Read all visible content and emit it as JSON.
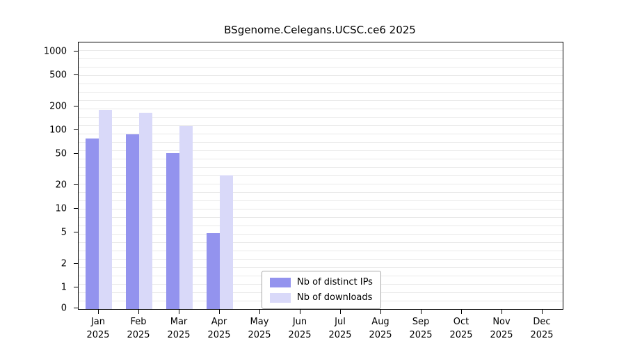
{
  "title": "BSgenome.Celegans.UCSC.ce6 2025",
  "colors": {
    "distinct_ips": "#9393ee",
    "downloads": "#d9d9f9",
    "axis": "#000000",
    "grid": "#e9e9e9",
    "background": "#ffffff"
  },
  "legend": {
    "items": [
      {
        "label": "Nb of distinct IPs",
        "key": "distinct_ips"
      },
      {
        "label": "Nb of downloads",
        "key": "downloads"
      }
    ]
  },
  "chart_data": {
    "type": "bar",
    "title": "BSgenome.Celegans.UCSC.ce6 2025",
    "categories": [
      "Jan",
      "Feb",
      "Mar",
      "Apr",
      "May",
      "Jun",
      "Jul",
      "Aug",
      "Sep",
      "Oct",
      "Nov",
      "Dec"
    ],
    "year": "2025",
    "series": [
      {
        "name": "Nb of distinct IPs",
        "values": [
          80,
          90,
          52,
          5,
          0,
          0,
          0,
          0,
          0,
          0,
          0,
          0
        ]
      },
      {
        "name": "Nb of downloads",
        "values": [
          185,
          170,
          115,
          27,
          0,
          0,
          0,
          0,
          0,
          0,
          0,
          0
        ]
      }
    ],
    "yscale": "log",
    "yticks": [
      0,
      1,
      2,
      5,
      10,
      20,
      50,
      100,
      200,
      500,
      1000
    ],
    "ylim": [
      0,
      1300
    ],
    "grid": true,
    "legend_position": "inside-bottom-center"
  }
}
